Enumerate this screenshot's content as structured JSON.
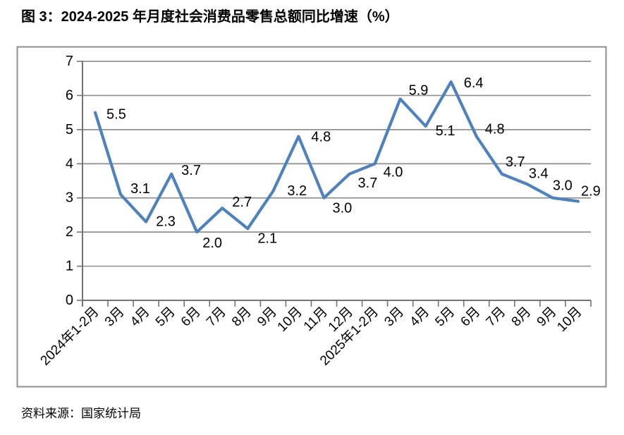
{
  "page": {
    "title": "图 3：2024-2025 年月度社会消费品零售总额同比增速（%）",
    "source": "资料来源：国家统计局"
  },
  "chart_data": {
    "type": "line",
    "title": "2024-2025 年月度社会消费品零售总额同比增速（%）",
    "categories": [
      "2024年1-2月",
      "3月",
      "4月",
      "5月",
      "6月",
      "7月",
      "8月",
      "9月",
      "10月",
      "11月",
      "12月",
      "2025年1-2月",
      "3月",
      "4月",
      "5月",
      "6月",
      "7月",
      "8月",
      "9月",
      "10月"
    ],
    "values": [
      5.5,
      3.1,
      2.3,
      3.7,
      2.0,
      2.7,
      2.1,
      3.2,
      4.8,
      3.0,
      3.7,
      4.0,
      5.9,
      5.1,
      6.4,
      4.8,
      3.7,
      3.4,
      3.0,
      2.9
    ],
    "data_label_texts": [
      "5.5",
      "3.1",
      "2.3",
      "3.7",
      "2.0",
      "2.7",
      "2.1",
      "3.2",
      "4.8",
      "3.0",
      "3.7",
      "4.0",
      "5.9",
      "5.1",
      "6.4",
      "4.8",
      "3.7",
      "3.4",
      "3.0",
      "2.9"
    ],
    "ylabel": "",
    "xlabel": "",
    "ylim": [
      0,
      7
    ],
    "yticks": [
      0,
      1,
      2,
      3,
      4,
      5,
      6,
      7
    ],
    "grid": "horizontal",
    "legend": "none",
    "markers": "none",
    "x_label_rotation_deg": 45,
    "colors": {
      "line": "#4F81BD",
      "grid": "#919191",
      "axis": "#737373",
      "frame": "#8F8F8F",
      "text": "#000000"
    }
  }
}
